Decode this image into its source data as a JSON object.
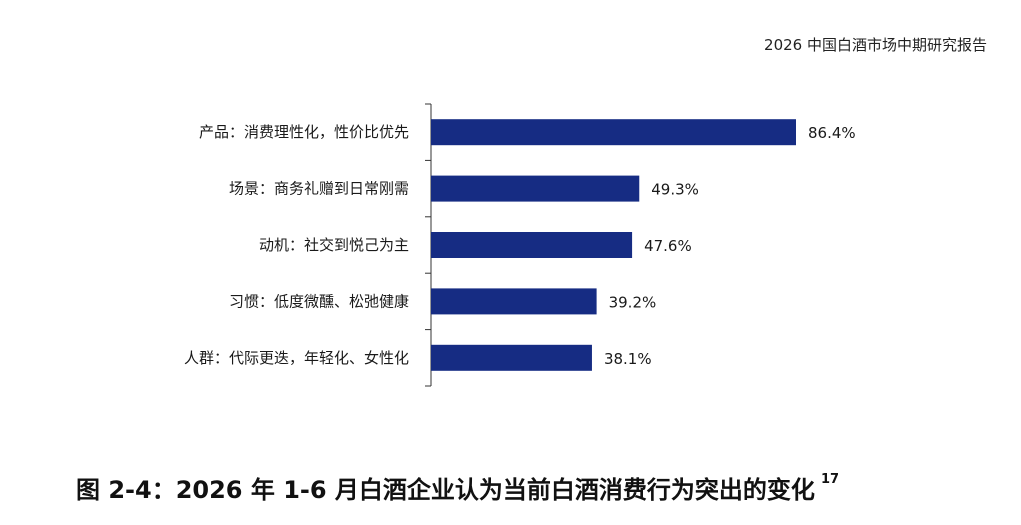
{
  "header": {
    "report_title": "2026 中国白酒市场中期研究报告"
  },
  "caption": {
    "text": "图 2-4：2026 年 1-6 月白酒企业认为当前白酒消费行为突出的变化",
    "footnote": "17"
  },
  "chart_data": {
    "type": "bar",
    "orientation": "horizontal",
    "categories": [
      "产品：消费理性化，性价比优先",
      "场景：商务礼赠到日常刚需",
      "动机：社交到悦己为主",
      "习惯：低度微醺、松弛健康",
      "人群：代际更迭，年轻化、女性化"
    ],
    "values": [
      86.4,
      49.3,
      47.6,
      39.2,
      38.1
    ],
    "value_labels": [
      "86.4%",
      "49.3%",
      "47.6%",
      "39.2%",
      "38.1%"
    ],
    "unit": "%",
    "xlim": [
      0,
      100
    ],
    "bar_color": "#162c83",
    "grid": false,
    "legend": "none"
  }
}
